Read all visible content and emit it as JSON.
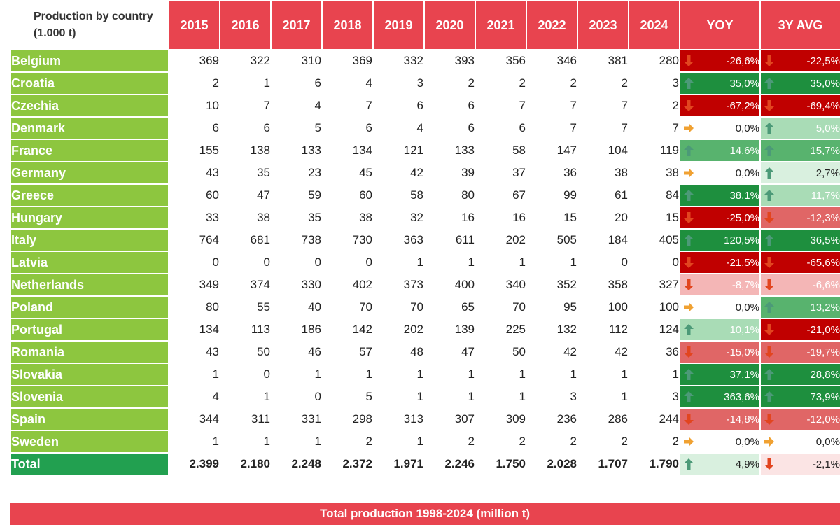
{
  "header": {
    "corner_label": "Production by country (1.000 t)",
    "years": [
      "2015",
      "2016",
      "2017",
      "2018",
      "2019",
      "2020",
      "2021",
      "2022",
      "2023",
      "2024"
    ],
    "yoy_label": "YOY",
    "avg_label": "3Y AVG"
  },
  "rows": [
    {
      "country": "Belgium",
      "values": [
        "369",
        "322",
        "310",
        "369",
        "332",
        "393",
        "356",
        "346",
        "381",
        "280"
      ],
      "yoy": "-26,6%",
      "avg": "-22,5%"
    },
    {
      "country": "Croatia",
      "values": [
        "2",
        "1",
        "6",
        "4",
        "3",
        "2",
        "2",
        "2",
        "2",
        "3"
      ],
      "yoy": "35,0%",
      "avg": "35,0%"
    },
    {
      "country": "Czechia",
      "values": [
        "10",
        "7",
        "4",
        "7",
        "6",
        "6",
        "7",
        "7",
        "7",
        "2"
      ],
      "yoy": "-67,2%",
      "avg": "-69,4%"
    },
    {
      "country": "Denmark",
      "values": [
        "6",
        "6",
        "5",
        "6",
        "4",
        "6",
        "6",
        "7",
        "7",
        "7"
      ],
      "yoy": "0,0%",
      "avg": "5,0%"
    },
    {
      "country": "France",
      "values": [
        "155",
        "138",
        "133",
        "134",
        "121",
        "133",
        "58",
        "147",
        "104",
        "119"
      ],
      "yoy": "14,6%",
      "avg": "15,7%"
    },
    {
      "country": "Germany",
      "values": [
        "43",
        "35",
        "23",
        "45",
        "42",
        "39",
        "37",
        "36",
        "38",
        "38"
      ],
      "yoy": "0,0%",
      "avg": "2,7%"
    },
    {
      "country": "Greece",
      "values": [
        "60",
        "47",
        "59",
        "60",
        "58",
        "80",
        "67",
        "99",
        "61",
        "84"
      ],
      "yoy": "38,1%",
      "avg": "11,7%"
    },
    {
      "country": "Hungary",
      "values": [
        "33",
        "38",
        "35",
        "38",
        "32",
        "16",
        "16",
        "15",
        "20",
        "15"
      ],
      "yoy": "-25,0%",
      "avg": "-12,3%"
    },
    {
      "country": "Italy",
      "values": [
        "764",
        "681",
        "738",
        "730",
        "363",
        "611",
        "202",
        "505",
        "184",
        "405"
      ],
      "yoy": "120,5%",
      "avg": "36,5%"
    },
    {
      "country": "Latvia",
      "values": [
        "0",
        "0",
        "0",
        "0",
        "1",
        "1",
        "1",
        "1",
        "0",
        "0"
      ],
      "yoy": "-21,5%",
      "avg": "-65,6%"
    },
    {
      "country": "Netherlands",
      "values": [
        "349",
        "374",
        "330",
        "402",
        "373",
        "400",
        "340",
        "352",
        "358",
        "327"
      ],
      "yoy": "-8,7%",
      "avg": "-6,6%"
    },
    {
      "country": "Poland",
      "values": [
        "80",
        "55",
        "40",
        "70",
        "70",
        "65",
        "70",
        "95",
        "100",
        "100"
      ],
      "yoy": "0,0%",
      "avg": "13,2%"
    },
    {
      "country": "Portugal",
      "values": [
        "134",
        "113",
        "186",
        "142",
        "202",
        "139",
        "225",
        "132",
        "112",
        "124"
      ],
      "yoy": "10,1%",
      "avg": "-21,0%"
    },
    {
      "country": "Romania",
      "values": [
        "43",
        "50",
        "46",
        "57",
        "48",
        "47",
        "50",
        "42",
        "42",
        "36"
      ],
      "yoy": "-15,0%",
      "avg": "-19,7%"
    },
    {
      "country": "Slovakia",
      "values": [
        "1",
        "0",
        "1",
        "1",
        "1",
        "1",
        "1",
        "1",
        "1",
        "1"
      ],
      "yoy": "37,1%",
      "avg": "28,8%"
    },
    {
      "country": "Slovenia",
      "values": [
        "4",
        "1",
        "0",
        "5",
        "1",
        "1",
        "1",
        "3",
        "1",
        "3"
      ],
      "yoy": "363,6%",
      "avg": "73,9%"
    },
    {
      "country": "Spain",
      "values": [
        "344",
        "311",
        "331",
        "298",
        "313",
        "307",
        "309",
        "236",
        "286",
        "244"
      ],
      "yoy": "-14,8%",
      "avg": "-12,0%"
    },
    {
      "country": "Sweden",
      "values": [
        "1",
        "1",
        "1",
        "2",
        "1",
        "2",
        "2",
        "2",
        "2",
        "2"
      ],
      "yoy": "0,0%",
      "avg": "0,0%"
    }
  ],
  "total": {
    "country": "Total",
    "values": [
      "2.399",
      "2.180",
      "2.248",
      "2.372",
      "1.971",
      "2.246",
      "1.750",
      "2.028",
      "1.707",
      "1.790"
    ],
    "yoy": "4,9%",
    "avg": "-2,1%"
  },
  "footer_label": "Total production 1998-2024 (million t)",
  "colors": {
    "header_red": "#e8444f",
    "country_green": "#8dc63f",
    "total_green": "#22a050",
    "dark_red": "#c00000",
    "mid_red": "#e06666",
    "light_red": "#f4b6b6",
    "pale_red": "#fbe4e4",
    "dark_green": "#1e8f3e",
    "mid_green": "#58b36e",
    "light_green": "#a9dcb6",
    "pale_green": "#d9f0df",
    "arrow_up": "#4c9a78",
    "arrow_down": "#e2451f",
    "arrow_flat": "#f0a132"
  }
}
